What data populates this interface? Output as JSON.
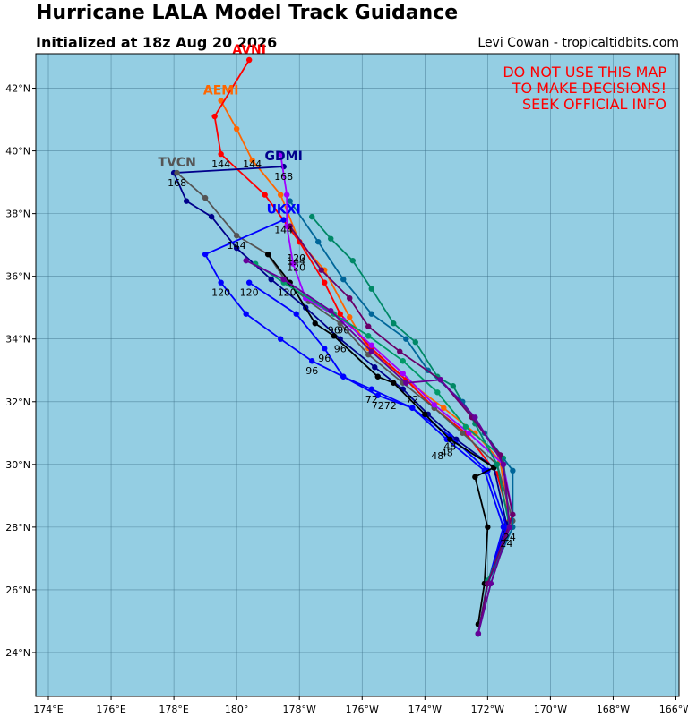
{
  "header": {
    "title": "Hurricane LALA Model Track Guidance",
    "subtitle": "Initialized at 18z Aug 20 2026",
    "credit": "Levi Cowan - tropicaltidbits.com"
  },
  "warning": {
    "lines": [
      "DO NOT USE THIS MAP",
      "TO MAKE DECISIONS!",
      "SEEK OFFICIAL INFO"
    ],
    "color": "#ff0000"
  },
  "colors": {
    "ocean": "#94cee3",
    "grid": "#3a6d86"
  },
  "axes": {
    "lon_ticks": [
      "174°E",
      "176°E",
      "178°E",
      "180°",
      "178°W",
      "176°W",
      "174°W",
      "172°W",
      "170°W",
      "168°W",
      "166°W"
    ],
    "lat_ticks": [
      "24°N",
      "26°N",
      "28°N",
      "30°N",
      "32°N",
      "34°N",
      "36°N",
      "38°N",
      "40°N",
      "42°N"
    ],
    "lon_range": [
      173.6,
      194.1
    ],
    "lat_range": [
      22.6,
      43.1
    ]
  },
  "chart_data": {
    "type": "scatter",
    "x_unit": "longitude (degrees east, 0-360)",
    "y_unit": "latitude (degrees north)",
    "series": [
      {
        "name": "AEMI",
        "color": "#ff6600",
        "label_visible": true,
        "points": [
          [
            187.7,
            24.6
          ],
          [
            188.0,
            26.2
          ],
          [
            188.7,
            28.2
          ],
          [
            188.4,
            30.1
          ],
          [
            187.6,
            31.0
          ],
          [
            186.6,
            31.8
          ],
          [
            185.4,
            32.7
          ],
          [
            184.2,
            33.7
          ],
          [
            183.6,
            34.7
          ],
          [
            182.8,
            36.2
          ],
          [
            182.0,
            37.1
          ],
          [
            181.4,
            38.6
          ],
          [
            180.5,
            39.7
          ],
          [
            180.0,
            40.7
          ],
          [
            179.5,
            41.6
          ]
        ],
        "hour_labels": []
      },
      {
        "name": "AVNI",
        "color": "#ff0000",
        "label_visible": true,
        "points": [
          [
            187.7,
            24.6
          ],
          [
            188.0,
            26.2
          ],
          [
            188.7,
            28.2
          ],
          [
            188.3,
            29.7
          ],
          [
            187.3,
            31.0
          ],
          [
            186.3,
            31.8
          ],
          [
            185.4,
            32.7
          ],
          [
            184.3,
            33.7
          ],
          [
            183.3,
            34.8
          ],
          [
            182.8,
            35.8
          ],
          [
            182.0,
            37.1
          ],
          [
            180.9,
            38.6
          ],
          [
            179.5,
            39.9
          ],
          [
            179.3,
            41.1
          ],
          [
            180.4,
            42.9
          ]
        ],
        "hour_labels": [
          {
            "text": "144",
            "x": 179.5,
            "y": 39.9
          }
        ]
      },
      {
        "name": "GDMI",
        "color": "#00008b",
        "label_visible": true,
        "points": [
          [
            187.7,
            24.6
          ],
          [
            188.0,
            26.2
          ],
          [
            188.6,
            28.1
          ],
          [
            188.2,
            29.9
          ],
          [
            187.0,
            30.8
          ],
          [
            186.1,
            31.6
          ],
          [
            185.3,
            32.4
          ],
          [
            184.4,
            33.1
          ],
          [
            183.3,
            34.0
          ],
          [
            182.2,
            35.0
          ],
          [
            181.1,
            35.9
          ],
          [
            180.0,
            36.9
          ],
          [
            179.2,
            37.9
          ],
          [
            178.4,
            38.4
          ],
          [
            178.0,
            39.3
          ],
          [
            181.5,
            39.5
          ]
        ],
        "hour_labels": [
          {
            "text": "168",
            "x": 181.5,
            "y": 39.5
          }
        ]
      },
      {
        "name": "TVCN",
        "color": "#555555",
        "label_visible": true,
        "points": [
          [
            187.7,
            24.6
          ],
          [
            188.0,
            26.2
          ],
          [
            188.8,
            28.2
          ],
          [
            188.3,
            30.0
          ],
          [
            187.2,
            31.0
          ],
          [
            186.3,
            31.8
          ],
          [
            185.3,
            32.6
          ],
          [
            184.2,
            33.5
          ],
          [
            183.3,
            34.5
          ],
          [
            182.3,
            35.2
          ],
          [
            181.6,
            35.8
          ],
          [
            181.0,
            36.7
          ],
          [
            180.0,
            37.3
          ],
          [
            179.0,
            38.5
          ],
          [
            178.1,
            39.3
          ]
        ],
        "hour_labels": [
          {
            "text": "168",
            "x": 178.1,
            "y": 39.3
          },
          {
            "text": "144",
            "x": 180.0,
            "y": 37.3
          },
          {
            "text": "120",
            "x": 181.6,
            "y": 35.8
          }
        ]
      },
      {
        "name": "UKXI",
        "color": "#0000ff",
        "label_visible": true,
        "points": [
          [
            187.7,
            24.6
          ],
          [
            188.0,
            26.2
          ],
          [
            188.6,
            28.0
          ],
          [
            188.0,
            29.8
          ],
          [
            186.8,
            30.9
          ],
          [
            185.6,
            31.8
          ],
          [
            184.3,
            32.4
          ],
          [
            183.4,
            32.8
          ],
          [
            182.4,
            33.3
          ],
          [
            181.4,
            34.0
          ],
          [
            180.3,
            34.8
          ],
          [
            179.5,
            35.8
          ],
          [
            179.0,
            36.7
          ],
          [
            181.5,
            37.8
          ]
        ],
        "hour_labels": [
          {
            "text": "144",
            "x": 181.5,
            "y": 37.8
          },
          {
            "text": "120",
            "x": 179.5,
            "y": 35.8
          },
          {
            "text": "96",
            "x": 182.4,
            "y": 33.3
          },
          {
            "text": "72",
            "x": 184.3,
            "y": 32.4
          },
          {
            "text": "48",
            "x": 186.8,
            "y": 30.9
          }
        ]
      },
      {
        "name": "HWRF",
        "color": "#0000ff",
        "label_visible": false,
        "points": [
          [
            187.7,
            24.6
          ],
          [
            188.0,
            26.2
          ],
          [
            188.5,
            28.0
          ],
          [
            187.9,
            29.8
          ],
          [
            186.7,
            30.8
          ],
          [
            185.6,
            31.8
          ],
          [
            184.5,
            32.2
          ],
          [
            183.4,
            32.8
          ],
          [
            182.8,
            33.7
          ],
          [
            181.9,
            34.8
          ],
          [
            180.4,
            35.8
          ]
        ],
        "hour_labels": [
          {
            "text": "120",
            "x": 180.4,
            "y": 35.8
          },
          {
            "text": "96",
            "x": 182.8,
            "y": 33.7
          },
          {
            "text": "72",
            "x": 184.5,
            "y": 32.2
          }
        ]
      },
      {
        "name": "NAVGEM",
        "color": "#000000",
        "label_visible": false,
        "points": [
          [
            187.7,
            24.9
          ],
          [
            187.9,
            26.2
          ],
          [
            188.0,
            28.0
          ],
          [
            187.6,
            29.6
          ],
          [
            188.2,
            29.9
          ],
          [
            186.8,
            30.8
          ],
          [
            186.0,
            31.6
          ],
          [
            185.0,
            32.6
          ],
          [
            184.5,
            32.8
          ],
          [
            183.1,
            34.1
          ],
          [
            182.5,
            34.5
          ],
          [
            181.7,
            35.8
          ],
          [
            181.0,
            36.7
          ]
        ],
        "hour_labels": []
      },
      {
        "name": "GFS",
        "color": "#a000ff",
        "label_visible": false,
        "points": [
          [
            187.7,
            24.6
          ],
          [
            188.0,
            26.2
          ],
          [
            188.8,
            28.4
          ],
          [
            188.5,
            30.0
          ],
          [
            187.4,
            31.0
          ],
          [
            186.3,
            31.9
          ],
          [
            185.3,
            32.9
          ],
          [
            184.3,
            33.8
          ],
          [
            183.4,
            34.6
          ],
          [
            182.2,
            35.3
          ],
          [
            181.8,
            36.4
          ],
          [
            181.6,
            37.6
          ],
          [
            181.6,
            38.6
          ],
          [
            181.4,
            39.9
          ]
        ],
        "hour_labels": [
          {
            "text": "96",
            "x": 183.4,
            "y": 34.6
          }
        ]
      },
      {
        "name": "ECMWF",
        "color": "#008866",
        "label_visible": false,
        "points": [
          [
            187.7,
            24.6
          ],
          [
            188.0,
            26.3
          ],
          [
            188.7,
            28.0
          ],
          [
            188.3,
            30.0
          ],
          [
            187.6,
            31.3
          ],
          [
            186.9,
            32.5
          ],
          [
            186.4,
            32.8
          ],
          [
            185.7,
            33.9
          ],
          [
            185.0,
            34.5
          ],
          [
            184.3,
            35.6
          ],
          [
            183.7,
            36.5
          ],
          [
            183.0,
            37.2
          ],
          [
            182.4,
            37.9
          ]
        ],
        "hour_labels": []
      },
      {
        "name": "TRACK-GREEN",
        "color": "#009966",
        "label_visible": false,
        "points": [
          [
            187.7,
            24.6
          ],
          [
            188.1,
            26.2
          ],
          [
            188.7,
            28.0
          ],
          [
            188.5,
            30.2
          ],
          [
            187.3,
            31.2
          ],
          [
            186.4,
            32.3
          ],
          [
            185.3,
            33.3
          ],
          [
            184.2,
            34.1
          ],
          [
            183.1,
            34.8
          ],
          [
            181.5,
            35.8
          ],
          [
            180.6,
            36.4
          ]
        ],
        "hour_labels": []
      },
      {
        "name": "TRACK-TEAL",
        "color": "#006699",
        "label_visible": false,
        "points": [
          [
            187.7,
            24.6
          ],
          [
            188.0,
            26.2
          ],
          [
            188.8,
            28.0
          ],
          [
            188.8,
            29.8
          ],
          [
            187.9,
            31.0
          ],
          [
            187.2,
            32.0
          ],
          [
            186.1,
            33.0
          ],
          [
            185.4,
            34.0
          ],
          [
            184.3,
            34.8
          ],
          [
            183.4,
            35.9
          ],
          [
            182.6,
            37.1
          ],
          [
            181.7,
            38.4
          ]
        ],
        "hour_labels": []
      },
      {
        "name": "TRACK-PURPLE",
        "color": "#6a006a",
        "label_visible": false,
        "points": [
          [
            187.7,
            24.6
          ],
          [
            188.0,
            26.2
          ],
          [
            188.8,
            28.4
          ],
          [
            188.4,
            30.3
          ],
          [
            187.5,
            31.5
          ],
          [
            186.5,
            32.7
          ],
          [
            185.2,
            33.6
          ],
          [
            184.2,
            34.4
          ],
          [
            183.6,
            35.3
          ],
          [
            182.7,
            36.2
          ],
          [
            181.7,
            37.6
          ]
        ],
        "hour_labels": []
      },
      {
        "name": "TRACK-DKPURPLE",
        "color": "#660099",
        "label_visible": false,
        "points": [
          [
            187.7,
            24.6
          ],
          [
            188.1,
            26.2
          ],
          [
            188.7,
            28.0
          ],
          [
            188.5,
            30.0
          ],
          [
            187.6,
            31.5
          ],
          [
            186.5,
            32.7
          ],
          [
            185.4,
            32.6
          ],
          [
            184.3,
            33.6
          ],
          [
            183.0,
            34.9
          ],
          [
            181.5,
            35.9
          ],
          [
            180.3,
            36.5
          ]
        ],
        "hour_labels": []
      }
    ],
    "extra_hour_labels": [
      {
        "text": "96",
        "x": 183.1,
        "y": 34.6
      },
      {
        "text": "96",
        "x": 183.3,
        "y": 34.0
      },
      {
        "text": "72",
        "x": 184.9,
        "y": 32.2
      },
      {
        "text": "72",
        "x": 185.6,
        "y": 32.4
      },
      {
        "text": "48",
        "x": 186.7,
        "y": 30.7
      },
      {
        "text": "48",
        "x": 186.4,
        "y": 30.6
      },
      {
        "text": "24",
        "x": 188.7,
        "y": 28.0
      },
      {
        "text": "24",
        "x": 188.6,
        "y": 27.8
      },
      {
        "text": "120",
        "x": 181.9,
        "y": 36.9
      },
      {
        "text": "120",
        "x": 181.9,
        "y": 36.6
      },
      {
        "text": "144",
        "x": 180.5,
        "y": 39.9
      },
      {
        "text": "144",
        "x": 181.9,
        "y": 36.8
      }
    ]
  }
}
